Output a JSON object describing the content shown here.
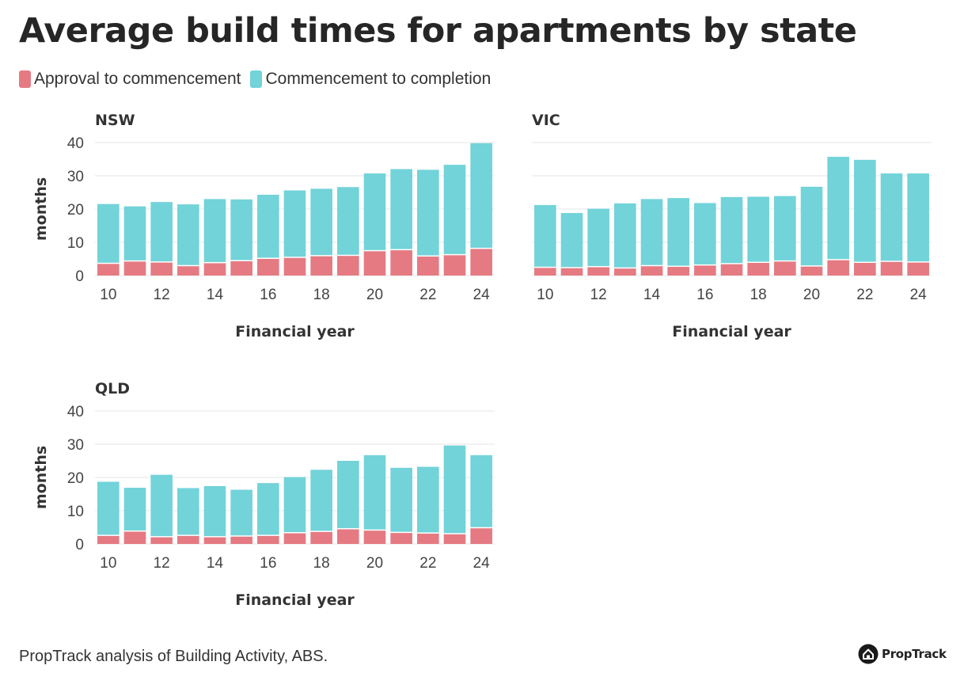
{
  "title": "Average build times for apartments by state",
  "legend": [
    {
      "label": "Approval to commencement",
      "color": "#e57a82"
    },
    {
      "label": "Commencement to completion",
      "color": "#72d3d9"
    }
  ],
  "footer": "PropTrack analysis of Building Activity, ABS.",
  "logo": {
    "text": "PropTrack",
    "icon": "house-icon"
  },
  "chart_data": [
    {
      "type": "bar",
      "stacked": true,
      "title": "NSW",
      "xlabel": "Financial year",
      "ylabel": "months",
      "ylim": [
        0,
        40
      ],
      "yticks": [
        0,
        10,
        20,
        30,
        40
      ],
      "xticks": [
        "10",
        "12",
        "14",
        "16",
        "18",
        "20",
        "22",
        "24"
      ],
      "show_y_ticks": true,
      "categories": [
        "10",
        "11",
        "12",
        "13",
        "14",
        "15",
        "16",
        "17",
        "18",
        "19",
        "20",
        "21",
        "22",
        "23",
        "24"
      ],
      "series": [
        {
          "name": "Approval to commencement",
          "values": [
            3.5,
            4.2,
            3.9,
            2.8,
            3.7,
            4.3,
            5,
            5.3,
            5.8,
            5.9,
            7.3,
            7.6,
            5.7,
            6.1,
            8
          ]
        },
        {
          "name": "Commencement to completion",
          "values": [
            18,
            16.6,
            18.2,
            18.6,
            19.3,
            18.6,
            19.3,
            20.3,
            20.3,
            20.7,
            23.4,
            24.4,
            26.1,
            27.2,
            31.8
          ]
        }
      ]
    },
    {
      "type": "bar",
      "stacked": true,
      "title": "VIC",
      "xlabel": "Financial year",
      "ylabel": "",
      "ylim": [
        0,
        40
      ],
      "yticks": [
        0,
        10,
        20,
        30,
        40
      ],
      "xticks": [
        "10",
        "12",
        "14",
        "16",
        "18",
        "20",
        "22",
        "24"
      ],
      "show_y_ticks": false,
      "categories": [
        "10",
        "11",
        "12",
        "13",
        "14",
        "15",
        "16",
        "17",
        "18",
        "19",
        "20",
        "21",
        "22",
        "23",
        "24"
      ],
      "series": [
        {
          "name": "Approval to commencement",
          "values": [
            2.3,
            2.2,
            2.5,
            2.1,
            2.8,
            2.6,
            3,
            3.4,
            3.8,
            4.2,
            2.7,
            4.6,
            3.8,
            4.1,
            3.9
          ]
        },
        {
          "name": "Commencement to completion",
          "values": [
            18.9,
            16.6,
            17.6,
            19.6,
            20.2,
            20.7,
            18.8,
            20.2,
            19.9,
            19.7,
            24,
            31.1,
            31,
            26.6,
            26.8
          ]
        }
      ]
    },
    {
      "type": "bar",
      "stacked": true,
      "title": "QLD",
      "xlabel": "Financial year",
      "ylabel": "months",
      "ylim": [
        0,
        40
      ],
      "yticks": [
        0,
        10,
        20,
        30,
        40
      ],
      "xticks": [
        "10",
        "12",
        "14",
        "16",
        "18",
        "20",
        "22",
        "24"
      ],
      "show_y_ticks": true,
      "categories": [
        "10",
        "11",
        "12",
        "13",
        "14",
        "15",
        "16",
        "17",
        "18",
        "19",
        "20",
        "21",
        "22",
        "23",
        "24"
      ],
      "series": [
        {
          "name": "Approval to commencement",
          "values": [
            2.4,
            3.7,
            2,
            2.4,
            2,
            2.2,
            2.4,
            3.2,
            3.6,
            4.4,
            4,
            3.3,
            3.1,
            2.9,
            4.7
          ]
        },
        {
          "name": "Commencement to completion",
          "values": [
            16.3,
            13.2,
            18.8,
            14.4,
            15.4,
            14.1,
            15.9,
            16.9,
            18.7,
            20.6,
            22.7,
            19.6,
            20.1,
            26.7,
            22
          ]
        }
      ]
    }
  ]
}
